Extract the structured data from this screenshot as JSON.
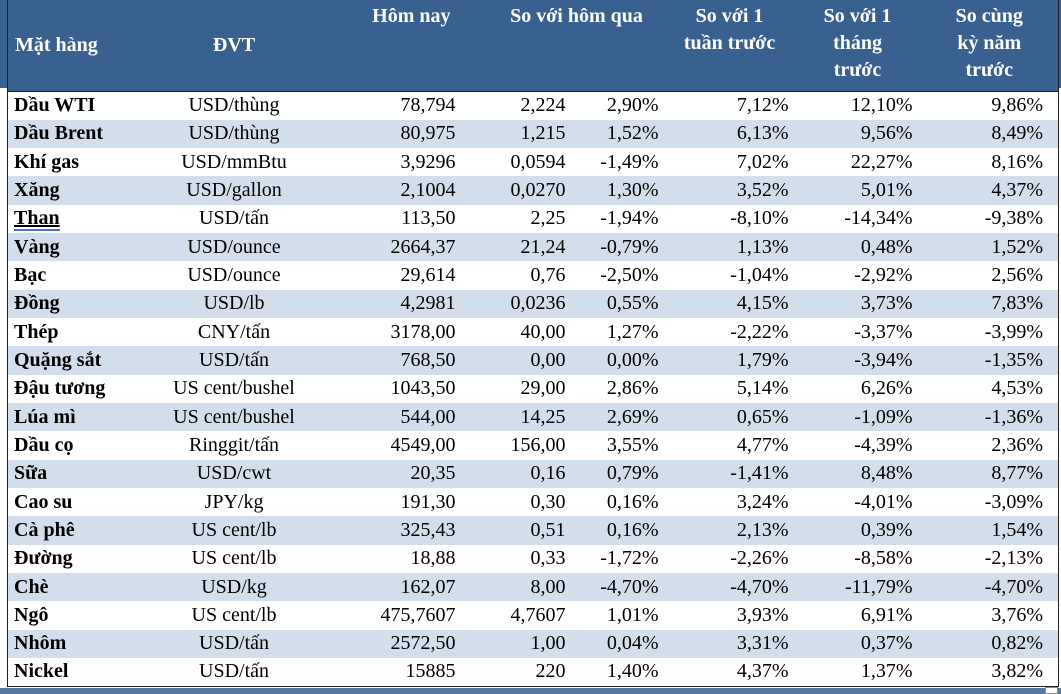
{
  "table": {
    "header": {
      "commodity": "Mặt hàng",
      "unit": "ĐVT",
      "today": "Hôm nay",
      "vs_yesterday": "So với hôm qua",
      "vs_week": "So với 1 tuần trước",
      "vs_month": "So với 1 tháng trước",
      "vs_year": "So cùng kỳ năm trước"
    },
    "rows": [
      {
        "name": "Dầu WTI",
        "unit": "USD/thùng",
        "today": "78,794",
        "change": "2,224",
        "vs_yesterday": "2,90%",
        "vs_week": "7,12%",
        "vs_month": "12,10%",
        "vs_year": "9,86%",
        "underlined": false
      },
      {
        "name": "Dầu Brent",
        "unit": "USD/thùng",
        "today": "80,975",
        "change": "1,215",
        "vs_yesterday": "1,52%",
        "vs_week": "6,13%",
        "vs_month": "9,56%",
        "vs_year": "8,49%",
        "underlined": false
      },
      {
        "name": "Khí gas",
        "unit": "USD/mmBtu",
        "today": "3,9296",
        "change": "0,0594",
        "vs_yesterday": "-1,49%",
        "vs_week": "7,02%",
        "vs_month": "22,27%",
        "vs_year": "8,16%",
        "underlined": false
      },
      {
        "name": "Xăng",
        "unit": "USD/gallon",
        "today": "2,1004",
        "change": "0,0270",
        "vs_yesterday": "1,30%",
        "vs_week": "3,52%",
        "vs_month": "5,01%",
        "vs_year": "4,37%",
        "underlined": false
      },
      {
        "name": "Than",
        "unit": "USD/tấn",
        "today": "113,50",
        "change": "2,25",
        "vs_yesterday": "-1,94%",
        "vs_week": "-8,10%",
        "vs_month": "-14,34%",
        "vs_year": "-9,38%",
        "underlined": true
      },
      {
        "name": "Vàng",
        "unit": "USD/ounce",
        "today": "2664,37",
        "change": "21,24",
        "vs_yesterday": "-0,79%",
        "vs_week": "1,13%",
        "vs_month": "0,48%",
        "vs_year": "1,52%",
        "underlined": false
      },
      {
        "name": "Bạc",
        "unit": "USD/ounce",
        "today": "29,614",
        "change": "0,76",
        "vs_yesterday": "-2,50%",
        "vs_week": "-1,04%",
        "vs_month": "-2,92%",
        "vs_year": "2,56%",
        "underlined": false
      },
      {
        "name": "Đồng",
        "unit": "USD/lb",
        "today": "4,2981",
        "change": "0,0236",
        "vs_yesterday": "0,55%",
        "vs_week": "4,15%",
        "vs_month": "3,73%",
        "vs_year": "7,83%",
        "underlined": false
      },
      {
        "name": "Thép",
        "unit": "CNY/tấn",
        "today": "3178,00",
        "change": "40,00",
        "vs_yesterday": "1,27%",
        "vs_week": "-2,22%",
        "vs_month": "-3,37%",
        "vs_year": "-3,99%",
        "underlined": false
      },
      {
        "name": "Quặng sắt",
        "unit": "USD/tấn",
        "today": "768,50",
        "change": "0,00",
        "vs_yesterday": "0,00%",
        "vs_week": "1,79%",
        "vs_month": "-3,94%",
        "vs_year": "-1,35%",
        "underlined": false
      },
      {
        "name": "Đậu tương",
        "unit": "US cent/bushel",
        "today": "1043,50",
        "change": "29,00",
        "vs_yesterday": "2,86%",
        "vs_week": "5,14%",
        "vs_month": "6,26%",
        "vs_year": "4,53%",
        "underlined": false
      },
      {
        "name": "Lúa mì",
        "unit": "US cent/bushel",
        "today": "544,00",
        "change": "14,25",
        "vs_yesterday": "2,69%",
        "vs_week": "0,65%",
        "vs_month": "-1,09%",
        "vs_year": "-1,36%",
        "underlined": false
      },
      {
        "name": "Dầu cọ",
        "unit": "Ringgit/tấn",
        "today": "4549,00",
        "change": "156,00",
        "vs_yesterday": "3,55%",
        "vs_week": "4,77%",
        "vs_month": "-4,39%",
        "vs_year": "2,36%",
        "underlined": false
      },
      {
        "name": "Sữa",
        "unit": "USD/cwt",
        "today": "20,35",
        "change": "0,16",
        "vs_yesterday": "0,79%",
        "vs_week": "-1,41%",
        "vs_month": "8,48%",
        "vs_year": "8,77%",
        "underlined": false
      },
      {
        "name": "Cao su",
        "unit": "JPY/kg",
        "today": "191,30",
        "change": "0,30",
        "vs_yesterday": "0,16%",
        "vs_week": "3,24%",
        "vs_month": "-4,01%",
        "vs_year": "-3,09%",
        "underlined": false
      },
      {
        "name": "Cà phê",
        "unit": "US cent/lb",
        "today": "325,43",
        "change": "0,51",
        "vs_yesterday": "0,16%",
        "vs_week": "2,13%",
        "vs_month": "0,39%",
        "vs_year": "1,54%",
        "underlined": false
      },
      {
        "name": "Đường",
        "unit": "US cent/lb",
        "today": "18,88",
        "change": "0,33",
        "vs_yesterday": "-1,72%",
        "vs_week": "-2,26%",
        "vs_month": "-8,58%",
        "vs_year": "-2,13%",
        "underlined": false
      },
      {
        "name": "Chè",
        "unit": "USD/kg",
        "today": "162,07",
        "change": "8,00",
        "vs_yesterday": "-4,70%",
        "vs_week": "-4,70%",
        "vs_month": "-11,79%",
        "vs_year": "-4,70%",
        "underlined": false
      },
      {
        "name": "Ngô",
        "unit": "US cent/lb",
        "today": "475,7607",
        "change": "4,7607",
        "vs_yesterday": "1,01%",
        "vs_week": "3,93%",
        "vs_month": "6,91%",
        "vs_year": "3,76%",
        "underlined": false
      },
      {
        "name": "Nhôm",
        "unit": "USD/tấn",
        "today": "2572,50",
        "change": "1,00",
        "vs_yesterday": "0,04%",
        "vs_week": "3,31%",
        "vs_month": "0,37%",
        "vs_year": "0,82%",
        "underlined": false
      },
      {
        "name": "Nickel",
        "unit": "USD/tấn",
        "today": "15885",
        "change": "220",
        "vs_yesterday": "1,40%",
        "vs_week": "4,37%",
        "vs_month": "1,37%",
        "vs_year": "3,82%",
        "underlined": false
      }
    ]
  },
  "colors": {
    "header_bg": "#39618F",
    "stripe_bg": "#D3DEEC",
    "header_text": "#FFFFFF",
    "body_text": "#000000",
    "border": "#1F1F1F",
    "bottom_bar": "#5878A6",
    "link_underline": "#4472C4"
  }
}
